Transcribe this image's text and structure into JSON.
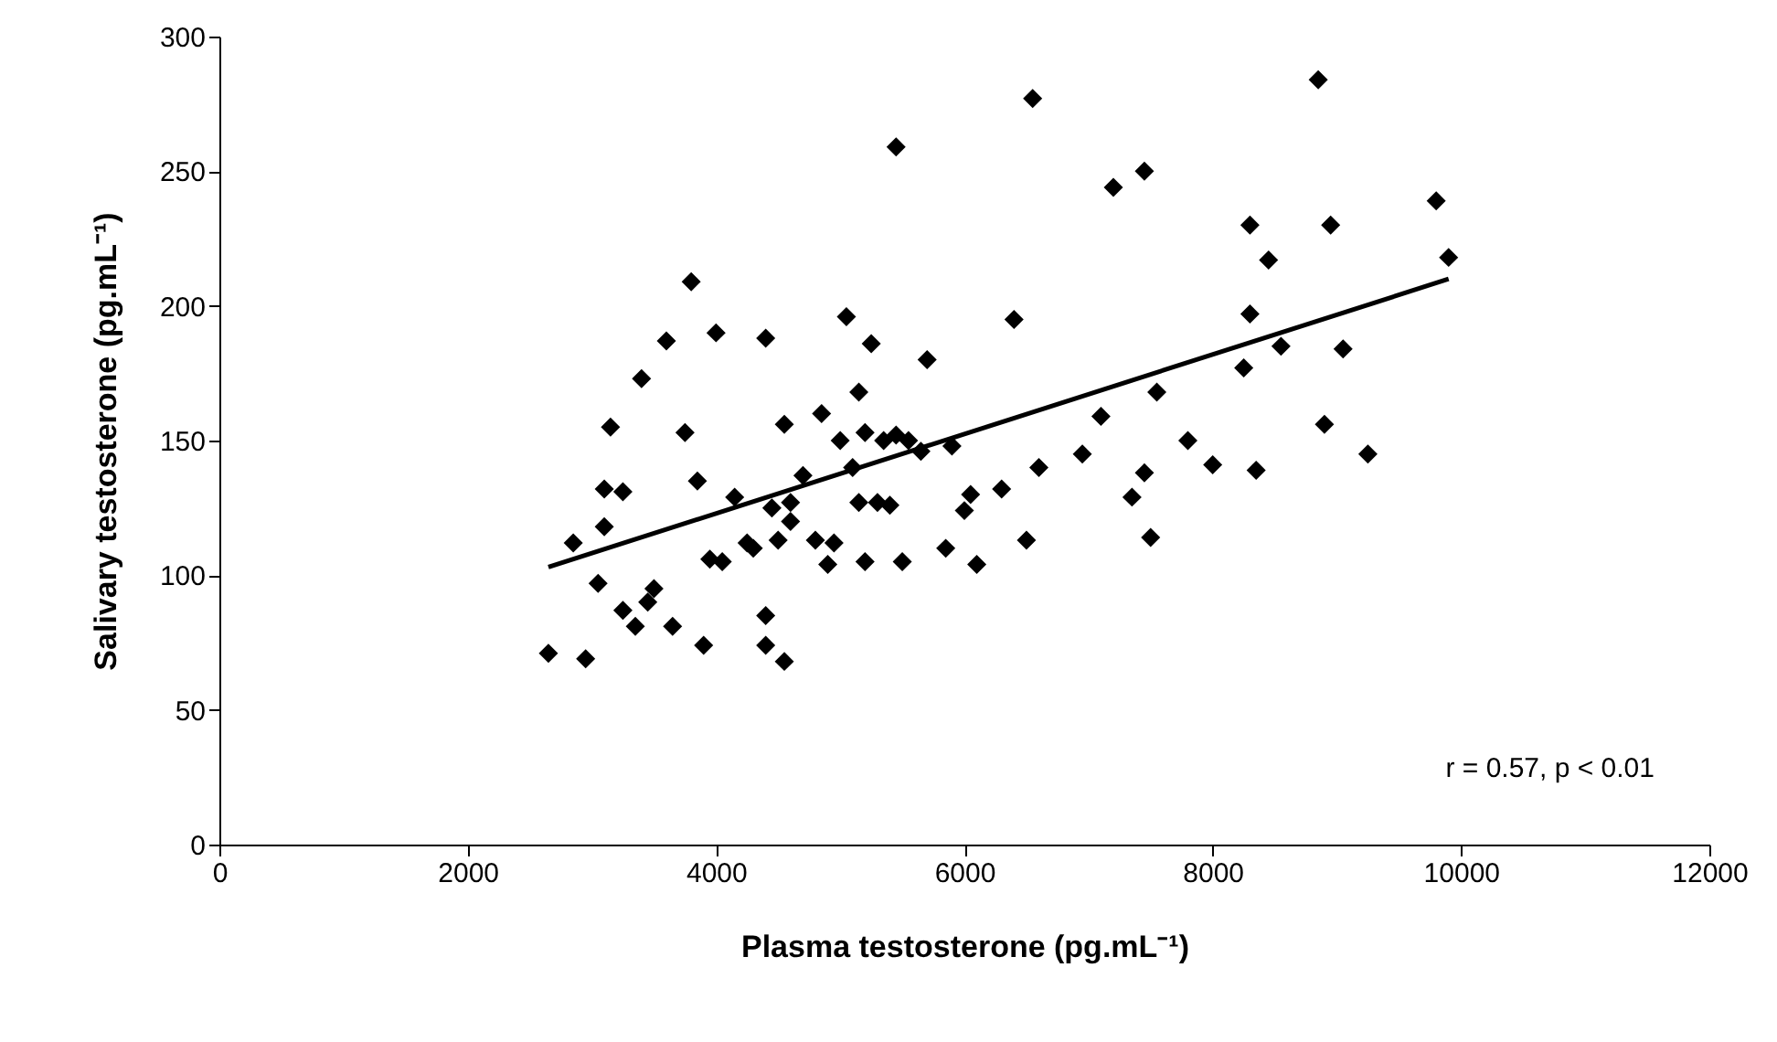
{
  "chart_data": {
    "type": "scatter",
    "xlabel": "Plasma testosterone  (pg.mL⁻¹)",
    "ylabel": "Salivary testosterone  (pg.mL⁻¹)",
    "xlim": [
      0,
      12000
    ],
    "xticks": [
      0,
      2000,
      4000,
      6000,
      8000,
      10000,
      12000
    ],
    "ylim": [
      0,
      300
    ],
    "yticks": [
      0,
      50,
      100,
      150,
      200,
      250,
      300
    ],
    "grid": false,
    "annotations": [
      "r = 0.57, p < 0.01"
    ],
    "series": [
      {
        "marker": "diamond",
        "color": "#000000",
        "x": [
          2650,
          2850,
          2950,
          3050,
          3100,
          3100,
          3150,
          3250,
          3250,
          3350,
          3400,
          3450,
          3500,
          3600,
          3650,
          3750,
          3800,
          3850,
          3900,
          3950,
          4000,
          4050,
          4150,
          4250,
          4300,
          4400,
          4400,
          4400,
          4450,
          4500,
          4550,
          4550,
          4600,
          4600,
          4700,
          4800,
          4850,
          4900,
          4950,
          5000,
          5050,
          5100,
          5150,
          5150,
          5200,
          5200,
          5250,
          5300,
          5350,
          5400,
          5450,
          5450,
          5500,
          5550,
          5650,
          5700,
          5850,
          5900,
          6000,
          6050,
          6100,
          6300,
          6400,
          6500,
          6550,
          6600,
          6950,
          7100,
          7200,
          7350,
          7450,
          7450,
          7500,
          7550,
          7800,
          8000,
          8250,
          8300,
          8300,
          8350,
          8450,
          8550,
          8850,
          8900,
          8950,
          9050,
          9250,
          9800,
          9900
        ],
        "values": [
          71,
          112,
          69,
          97,
          118,
          132,
          155,
          87,
          131,
          81,
          173,
          90,
          95,
          187,
          81,
          153,
          209,
          135,
          74,
          106,
          190,
          105,
          129,
          112,
          110,
          85,
          188,
          74,
          125,
          113,
          68,
          156,
          120,
          127,
          137,
          113,
          160,
          104,
          112,
          150,
          196,
          140,
          168,
          127,
          105,
          153,
          186,
          127,
          150,
          126,
          259,
          152,
          105,
          150,
          146,
          180,
          110,
          148,
          124,
          130,
          104,
          132,
          195,
          113,
          277,
          140,
          145,
          159,
          244,
          129,
          250,
          138,
          114,
          168,
          150,
          141,
          177,
          230,
          197,
          139,
          217,
          185,
          284,
          156,
          230,
          184,
          145,
          239,
          218
        ]
      },
      {
        "type": "line",
        "marker": "none",
        "line_style": "solid",
        "color": "#000000",
        "x": [
          2650,
          9900
        ],
        "values": [
          103,
          210
        ]
      }
    ]
  }
}
